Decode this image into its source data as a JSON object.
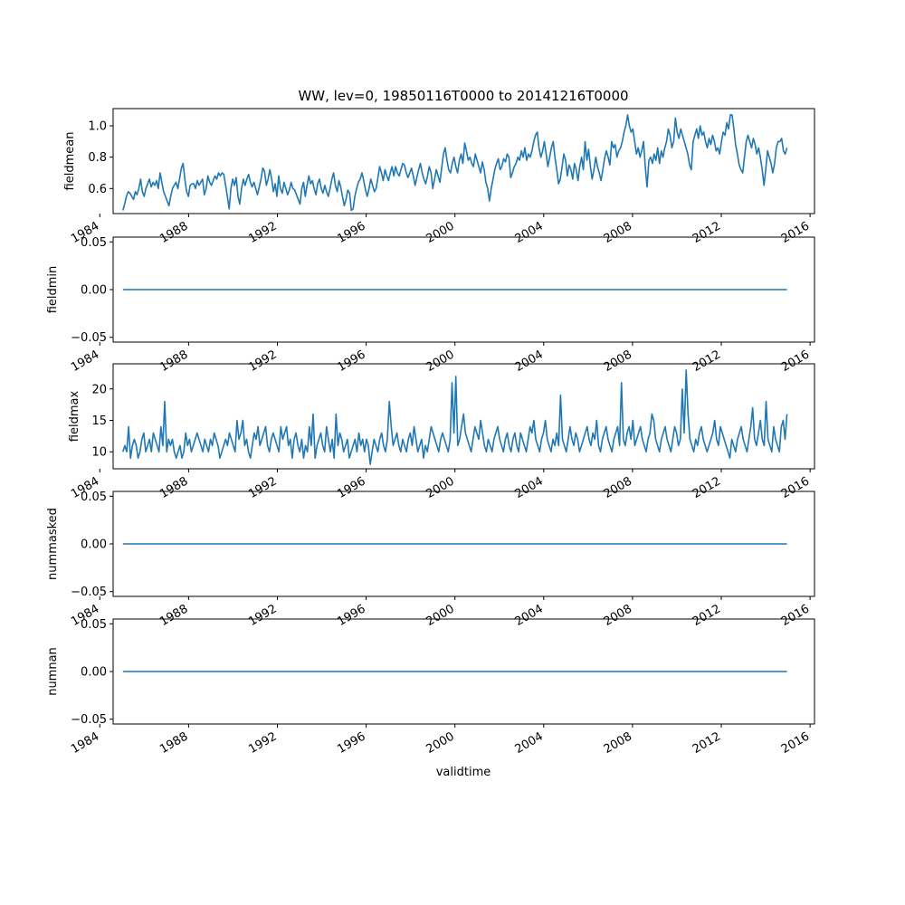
{
  "figure": {
    "title": "WW, lev=0, 19850116T0000 to 20141216T0000",
    "xlabel": "validtime",
    "x_tick_labels": [
      "1984",
      "1988",
      "1992",
      "1996",
      "2000",
      "2004",
      "2008",
      "2012",
      "2016"
    ],
    "line_color": "#1f77b4"
  },
  "chart_data": [
    {
      "type": "line",
      "ylabel": "fieldmean",
      "xlim": [
        1984.6,
        2016.2
      ],
      "ylim": [
        0.44,
        1.11
      ],
      "y_ticks": [
        "0.6",
        "0.8",
        "1.0"
      ],
      "y_tick_values": [
        0.6,
        0.8,
        1.0
      ],
      "x_start": 1985.04,
      "x_end": 2014.96,
      "y_values": [
        0.46,
        0.5,
        0.55,
        0.58,
        0.57,
        0.55,
        0.53,
        0.58,
        0.56,
        0.6,
        0.66,
        0.58,
        0.55,
        0.6,
        0.63,
        0.66,
        0.61,
        0.64,
        0.62,
        0.65,
        0.6,
        0.7,
        0.64,
        0.58,
        0.55,
        0.52,
        0.49,
        0.55,
        0.6,
        0.62,
        0.64,
        0.6,
        0.66,
        0.73,
        0.76,
        0.66,
        0.58,
        0.55,
        0.62,
        0.63,
        0.63,
        0.6,
        0.65,
        0.62,
        0.64,
        0.66,
        0.56,
        0.6,
        0.68,
        0.64,
        0.62,
        0.65,
        0.68,
        0.66,
        0.7,
        0.68,
        0.7,
        0.69,
        0.62,
        0.55,
        0.47,
        0.6,
        0.66,
        0.62,
        0.67,
        0.55,
        0.5,
        0.6,
        0.66,
        0.62,
        0.66,
        0.69,
        0.64,
        0.61,
        0.64,
        0.6,
        0.56,
        0.61,
        0.66,
        0.73,
        0.71,
        0.62,
        0.66,
        0.72,
        0.66,
        0.58,
        0.63,
        0.55,
        0.68,
        0.6,
        0.57,
        0.64,
        0.6,
        0.56,
        0.59,
        0.64,
        0.6,
        0.59,
        0.56,
        0.53,
        0.5,
        0.6,
        0.64,
        0.55,
        0.62,
        0.68,
        0.63,
        0.65,
        0.6,
        0.56,
        0.63,
        0.66,
        0.6,
        0.57,
        0.62,
        0.58,
        0.55,
        0.6,
        0.66,
        0.7,
        0.62,
        0.58,
        0.65,
        0.61,
        0.55,
        0.49,
        0.53,
        0.59,
        0.57,
        0.46,
        0.47,
        0.55,
        0.6,
        0.64,
        0.66,
        0.7,
        0.65,
        0.59,
        0.55,
        0.6,
        0.66,
        0.62,
        0.58,
        0.6,
        0.67,
        0.74,
        0.7,
        0.65,
        0.72,
        0.68,
        0.65,
        0.7,
        0.74,
        0.68,
        0.74,
        0.7,
        0.68,
        0.72,
        0.76,
        0.75,
        0.7,
        0.67,
        0.7,
        0.73,
        0.68,
        0.62,
        0.67,
        0.72,
        0.76,
        0.7,
        0.66,
        0.63,
        0.68,
        0.74,
        0.7,
        0.6,
        0.66,
        0.72,
        0.68,
        0.64,
        0.73,
        0.82,
        0.86,
        0.78,
        0.72,
        0.7,
        0.76,
        0.8,
        0.74,
        0.7,
        0.78,
        0.82,
        0.76,
        0.89,
        0.84,
        0.78,
        0.8,
        0.76,
        0.74,
        0.82,
        0.78,
        0.74,
        0.7,
        0.77,
        0.72,
        0.64,
        0.6,
        0.52,
        0.6,
        0.66,
        0.72,
        0.76,
        0.79,
        0.72,
        0.74,
        0.79,
        0.77,
        0.82,
        0.8,
        0.67,
        0.7,
        0.74,
        0.76,
        0.8,
        0.78,
        0.84,
        0.8,
        0.86,
        0.78,
        0.82,
        0.8,
        0.84,
        0.9,
        0.94,
        0.96,
        0.86,
        0.8,
        0.84,
        0.9,
        0.82,
        0.74,
        0.8,
        0.86,
        0.9,
        0.8,
        0.72,
        0.63,
        0.66,
        0.74,
        0.82,
        0.78,
        0.68,
        0.75,
        0.72,
        0.66,
        0.76,
        0.72,
        0.65,
        0.74,
        0.8,
        0.72,
        0.9,
        0.78,
        0.85,
        0.74,
        0.66,
        0.72,
        0.8,
        0.74,
        0.7,
        0.65,
        0.72,
        0.79,
        0.84,
        0.8,
        0.75,
        0.9,
        0.86,
        0.88,
        0.8,
        0.84,
        0.86,
        0.9,
        0.96,
        1.0,
        1.07,
        1.0,
        0.96,
        0.98,
        0.9,
        0.82,
        0.86,
        0.8,
        0.84,
        0.9,
        0.74,
        0.61,
        0.78,
        0.8,
        0.76,
        0.82,
        0.78,
        0.86,
        0.76,
        0.84,
        0.8,
        0.86,
        0.9,
        0.98,
        0.94,
        0.86,
        0.9,
        1.05,
        0.96,
        0.92,
        0.98,
        0.94,
        0.9,
        0.86,
        0.82,
        0.75,
        0.72,
        0.9,
        0.94,
        0.98,
        0.92,
        1.0,
        0.94,
        0.96,
        0.9,
        0.86,
        0.92,
        0.88,
        0.94,
        0.9,
        0.84,
        0.86,
        0.82,
        0.9,
        0.96,
        0.94,
        1.02,
        0.98,
        1.07,
        1.07,
        0.98,
        0.88,
        0.82,
        0.75,
        0.72,
        0.7,
        0.8,
        0.9,
        0.94,
        0.9,
        0.86,
        0.92,
        0.88,
        0.82,
        0.86,
        0.8,
        0.72,
        0.62,
        0.72,
        0.84,
        0.8,
        0.76,
        0.7,
        0.76,
        0.86,
        0.9,
        0.9,
        0.92,
        0.84,
        0.82,
        0.86
      ]
    },
    {
      "type": "line",
      "ylabel": "fieldmin",
      "xlim": [
        1984.6,
        2016.2
      ],
      "ylim": [
        -0.055,
        0.055
      ],
      "y_ticks": [
        "−0.05",
        "0.00",
        "0.05"
      ],
      "y_tick_values": [
        -0.05,
        0.0,
        0.05
      ],
      "x_start": 1985.04,
      "x_end": 2014.96,
      "constant_value": 0.0
    },
    {
      "type": "line",
      "ylabel": "fieldmax",
      "xlim": [
        1984.6,
        2016.2
      ],
      "ylim": [
        7.3,
        24.0
      ],
      "y_ticks": [
        "10",
        "15",
        "20"
      ],
      "y_tick_values": [
        10,
        15,
        20
      ],
      "x_start": 1985.04,
      "x_end": 2014.96,
      "y_values": [
        10,
        11,
        10,
        14,
        9,
        11,
        12,
        11,
        9,
        10,
        12,
        13,
        10,
        11,
        12,
        10,
        13,
        12,
        11,
        10,
        14,
        11,
        18,
        10,
        12,
        11,
        12,
        10,
        9,
        10,
        11,
        9,
        10,
        13,
        11,
        12,
        10,
        11,
        12,
        13,
        12,
        11,
        10,
        12,
        11,
        10,
        12,
        11,
        13,
        12,
        11,
        9,
        10,
        11,
        12,
        11,
        13,
        12,
        11,
        10,
        15,
        12,
        13,
        15,
        11,
        12,
        10,
        9,
        11,
        13,
        12,
        14,
        11,
        12,
        13,
        14,
        11,
        10,
        12,
        13,
        12,
        11,
        10,
        14,
        12,
        13,
        14,
        11,
        12,
        9,
        12,
        13,
        11,
        10,
        12,
        9,
        11,
        10,
        14,
        11,
        16,
        9,
        11,
        12,
        13,
        11,
        10,
        14,
        12,
        10,
        12,
        9,
        16,
        11,
        13,
        12,
        10,
        11,
        12,
        9,
        10,
        11,
        12,
        10,
        13,
        11,
        12,
        10,
        12,
        11,
        8,
        10,
        12,
        11,
        10,
        12,
        13,
        11,
        10,
        12,
        18,
        14,
        11,
        12,
        13,
        11,
        10,
        12,
        11,
        10,
        12,
        13,
        11,
        14,
        12,
        10,
        11,
        12,
        9,
        11,
        10,
        12,
        14,
        13,
        12,
        11,
        10,
        12,
        13,
        12,
        11,
        10,
        12,
        21,
        13,
        22,
        11,
        12,
        14,
        16,
        13,
        12,
        11,
        10,
        12,
        14,
        13,
        12,
        15,
        13,
        11,
        10,
        12,
        11,
        10,
        12,
        13,
        14,
        12,
        11,
        10,
        12,
        13,
        11,
        10,
        12,
        13,
        11,
        10,
        13,
        12,
        11,
        10,
        12,
        14,
        13,
        15,
        12,
        11,
        10,
        12,
        13,
        15,
        12,
        11,
        10,
        12,
        11,
        13,
        11,
        19,
        12,
        11,
        10,
        12,
        14,
        12,
        11,
        13,
        12,
        10,
        11,
        12,
        13,
        14,
        12,
        11,
        13,
        12,
        15,
        11,
        10,
        12,
        13,
        14,
        12,
        11,
        10,
        12,
        13,
        14,
        11,
        21,
        12,
        11,
        13,
        14,
        12,
        15,
        11,
        12,
        13,
        14,
        12,
        11,
        10,
        12,
        13,
        16,
        15,
        12,
        11,
        10,
        12,
        13,
        14,
        12,
        11,
        10,
        12,
        14,
        13,
        11,
        12,
        20,
        13,
        23,
        16,
        12,
        11,
        10,
        12,
        11,
        13,
        14,
        12,
        11,
        10,
        11,
        12,
        13,
        15,
        12,
        11,
        14,
        13,
        12,
        11,
        10,
        9,
        12,
        11,
        10,
        12,
        13,
        14,
        12,
        11,
        10,
        12,
        14,
        17,
        12,
        11,
        13,
        15,
        12,
        11,
        18,
        12,
        11,
        10,
        14,
        12,
        11,
        10,
        14,
        15,
        12,
        16
      ]
    },
    {
      "type": "line",
      "ylabel": "nummasked",
      "xlim": [
        1984.6,
        2016.2
      ],
      "ylim": [
        -0.055,
        0.055
      ],
      "y_ticks": [
        "−0.05",
        "0.00",
        "0.05"
      ],
      "y_tick_values": [
        -0.05,
        0.0,
        0.05
      ],
      "x_start": 1985.04,
      "x_end": 2014.96,
      "constant_value": 0.0
    },
    {
      "type": "line",
      "ylabel": "numnan",
      "xlim": [
        1984.6,
        2016.2
      ],
      "ylim": [
        -0.055,
        0.055
      ],
      "y_ticks": [
        "−0.05",
        "0.00",
        "0.05"
      ],
      "y_tick_values": [
        -0.05,
        0.0,
        0.05
      ],
      "x_start": 1985.04,
      "x_end": 2014.96,
      "constant_value": 0.0
    }
  ]
}
